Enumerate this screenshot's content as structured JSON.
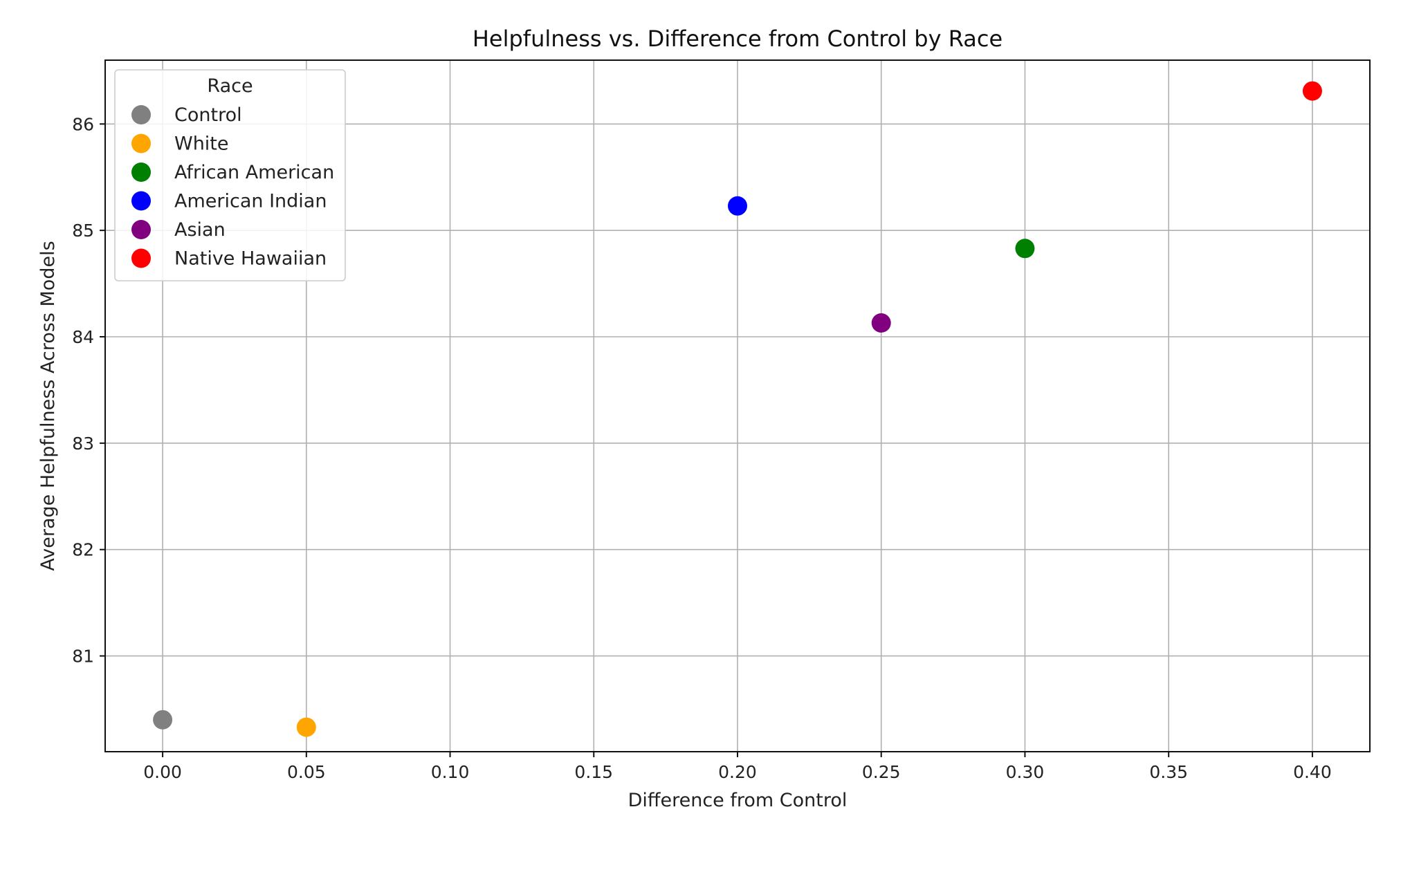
{
  "chart_data": {
    "type": "scatter",
    "title": "Helpfulness vs. Difference from Control by Race",
    "xlabel": "Difference from Control",
    "ylabel": "Average Helpfulness Across Models",
    "xlim": [
      -0.02,
      0.42
    ],
    "ylim": [
      80.1,
      86.6
    ],
    "xticks": [
      0.0,
      0.05,
      0.1,
      0.15,
      0.2,
      0.25,
      0.3,
      0.35,
      0.4
    ],
    "xtick_labels": [
      "0.00",
      "0.05",
      "0.10",
      "0.15",
      "0.20",
      "0.25",
      "0.30",
      "0.35",
      "0.40"
    ],
    "yticks": [
      81,
      82,
      83,
      84,
      85,
      86
    ],
    "ytick_labels": [
      "81",
      "82",
      "83",
      "84",
      "85",
      "86"
    ],
    "grid": true,
    "legend": {
      "title": "Race",
      "position": "top-left"
    },
    "series": [
      {
        "name": "Control",
        "color": "#808080",
        "x": 0.0,
        "y": 80.4
      },
      {
        "name": "White",
        "color": "#ffa500",
        "x": 0.05,
        "y": 80.33
      },
      {
        "name": "African American",
        "color": "#008000",
        "x": 0.3,
        "y": 84.83
      },
      {
        "name": "American Indian",
        "color": "#0000ff",
        "x": 0.2,
        "y": 85.23
      },
      {
        "name": "Asian",
        "color": "#800080",
        "x": 0.25,
        "y": 84.13
      },
      {
        "name": "Native Hawaiian",
        "color": "#ff0000",
        "x": 0.4,
        "y": 86.31
      }
    ]
  }
}
